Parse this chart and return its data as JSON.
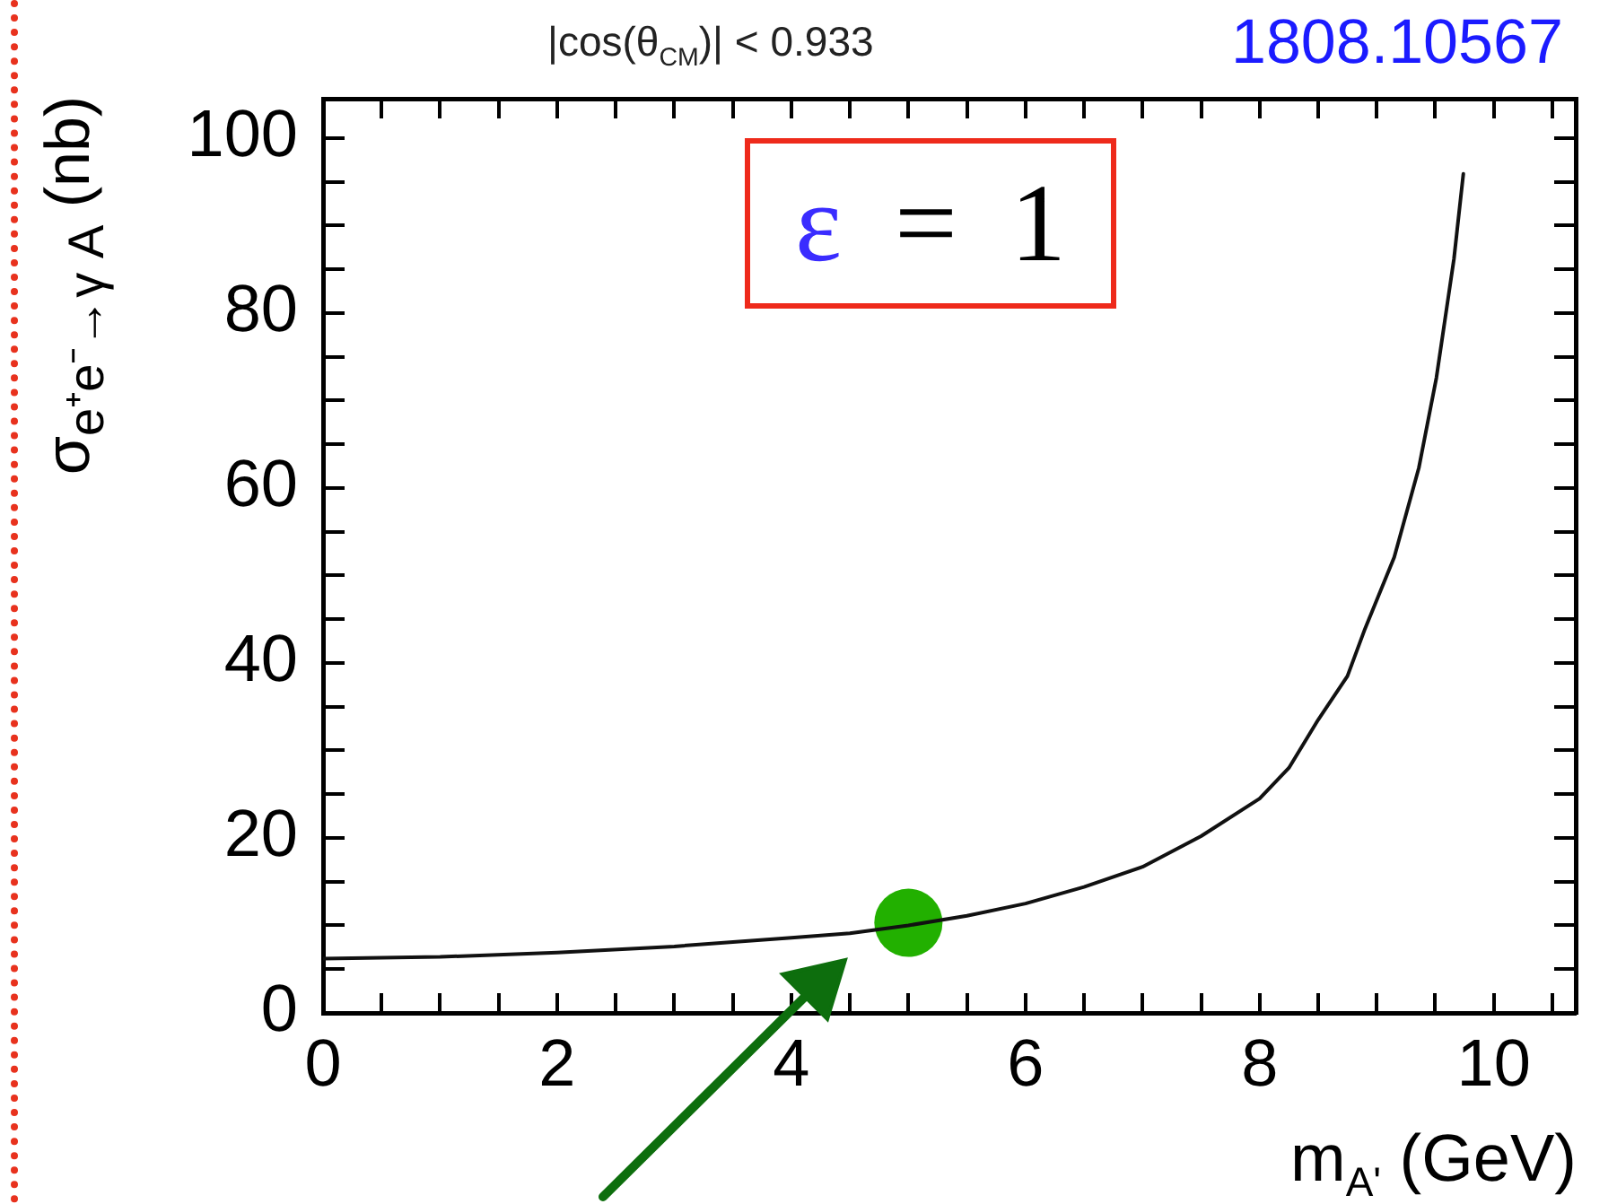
{
  "chart_data": {
    "type": "line",
    "title": "|cos(θ$_{CM}$)| < 0.933",
    "xlabel": "m$_{A'}$ (GeV)",
    "ylabel": "σ$_{e⁺e⁻→γ A}$ (nb)",
    "annotations": [
      "ε = 1",
      "1808.10567"
    ],
    "series": [
      {
        "color": "#111111",
        "x": [
          0,
          1,
          2,
          3,
          4,
          4.5,
          5,
          5.5,
          6,
          6.5,
          7,
          7.5,
          8,
          8.25,
          8.5,
          8.75,
          8.9,
          9.15,
          9.36,
          9.51,
          9.66,
          9.74
        ],
        "values": [
          6.2,
          6.4,
          6.9,
          7.6,
          8.6,
          9.1,
          10.0,
          11.1,
          12.5,
          14.4,
          16.7,
          20.2,
          24.5,
          28,
          33.5,
          38.5,
          43.9,
          52.1,
          62.3,
          72.6,
          86.2,
          95.9
        ]
      },
      {
        "type": "scatter",
        "color": "#22b000",
        "marker": "circle",
        "x": [
          5
        ],
        "values": [
          10.3
        ]
      }
    ],
    "xlim": [
      0,
      10.7
    ],
    "ylim": [
      0,
      104.5
    ],
    "xticks": [
      0,
      {
        "value": 0.5,
        "label": null
      },
      {
        "value": 1,
        "label": null
      },
      {
        "value": 1.5,
        "label": null
      },
      2,
      {
        "value": 2.5,
        "label": null
      },
      {
        "value": 3,
        "label": null
      },
      {
        "value": 3.5,
        "label": null
      },
      4,
      {
        "value": 4.5,
        "label": null
      },
      {
        "value": 5,
        "label": null
      },
      {
        "value": 5.5,
        "label": null
      },
      6,
      {
        "value": 6.5,
        "label": null
      },
      {
        "value": 7,
        "label": null
      },
      {
        "value": 7.5,
        "label": null
      },
      8,
      {
        "value": 8.5,
        "label": null
      },
      {
        "value": 9,
        "label": null
      },
      {
        "value": 9.5,
        "label": null
      },
      10,
      {
        "value": 10.5,
        "label": null
      }
    ],
    "yticks": [
      0,
      {
        "value": 5,
        "label": null
      },
      {
        "value": 10,
        "label": null
      },
      {
        "value": 15,
        "label": null
      },
      20,
      {
        "value": 25,
        "label": null
      },
      {
        "value": 30,
        "label": null
      },
      {
        "value": 35,
        "label": null
      },
      40,
      {
        "value": 45,
        "label": null
      },
      {
        "value": 50,
        "label": null
      },
      {
        "value": 55,
        "label": null
      },
      60,
      {
        "value": 65,
        "label": null
      },
      {
        "value": 70,
        "label": null
      },
      {
        "value": 75,
        "label": null
      },
      80,
      {
        "value": 85,
        "label": null
      },
      {
        "value": 90,
        "label": null
      },
      {
        "value": 95,
        "label": null
      },
      100
    ]
  }
}
